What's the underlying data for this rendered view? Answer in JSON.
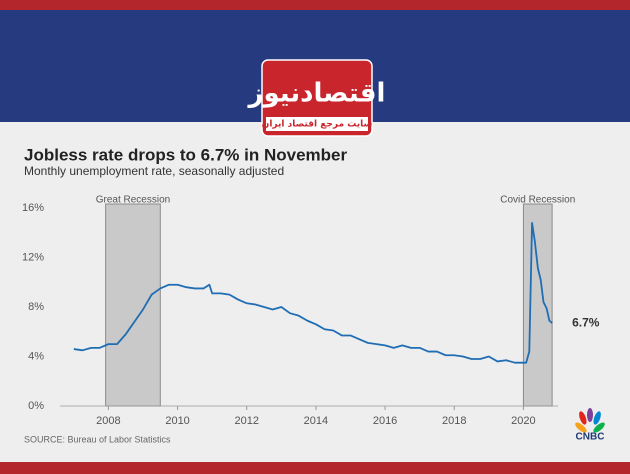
{
  "header": {
    "logo_title": "اقتصادنیوز",
    "logo_tagline": "سایت مرجع اقتصاد ایران"
  },
  "chart_data": {
    "type": "line",
    "title": "Jobless rate drops to 6.7% in November",
    "subtitle": "Monthly unemployment rate, seasonally adjusted",
    "source": "SOURCE: Bureau of Labor Statistics",
    "brand": "CNBC",
    "color": "#1f6db3",
    "grid": false,
    "xlim": [
      2006.6,
      2021
    ],
    "xticks": [
      2008,
      2010,
      2012,
      2014,
      2016,
      2018,
      2020
    ],
    "ylim": [
      0,
      16
    ],
    "yticks": [
      {
        "value": 0,
        "label": "0%"
      },
      {
        "value": 4,
        "label": "4%"
      },
      {
        "value": 8,
        "label": "8%"
      },
      {
        "value": 12,
        "label": "12%"
      },
      {
        "value": 16,
        "label": "16%"
      }
    ],
    "shaded": [
      {
        "label": "Great Recession",
        "start": 2007.92,
        "end": 2009.5
      },
      {
        "label": "Covid Recession",
        "start": 2020.0,
        "end": 2020.83
      }
    ],
    "x": [
      2007.0,
      2007.25,
      2007.5,
      2007.75,
      2008.0,
      2008.25,
      2008.5,
      2008.75,
      2009.0,
      2009.25,
      2009.5,
      2009.75,
      2010.0,
      2010.25,
      2010.5,
      2010.75,
      2010.92,
      2011.0,
      2011.25,
      2011.5,
      2011.75,
      2012.0,
      2012.25,
      2012.5,
      2012.75,
      2013.0,
      2013.25,
      2013.5,
      2013.75,
      2014.0,
      2014.25,
      2014.5,
      2014.75,
      2015.0,
      2015.25,
      2015.5,
      2015.75,
      2016.0,
      2016.25,
      2016.5,
      2016.75,
      2017.0,
      2017.25,
      2017.5,
      2017.75,
      2018.0,
      2018.25,
      2018.5,
      2018.75,
      2019.0,
      2019.25,
      2019.5,
      2019.75,
      2020.0,
      2020.08,
      2020.17,
      2020.25,
      2020.33,
      2020.42,
      2020.5,
      2020.58,
      2020.67,
      2020.75,
      2020.83
    ],
    "values": [
      4.6,
      4.5,
      4.7,
      4.7,
      5.0,
      5.0,
      5.8,
      6.8,
      7.8,
      9.0,
      9.5,
      9.8,
      9.8,
      9.6,
      9.5,
      9.5,
      9.8,
      9.1,
      9.1,
      9.0,
      8.6,
      8.3,
      8.2,
      8.0,
      7.8,
      8.0,
      7.5,
      7.3,
      6.9,
      6.6,
      6.2,
      6.1,
      5.7,
      5.7,
      5.4,
      5.1,
      5.0,
      4.9,
      4.7,
      4.9,
      4.7,
      4.7,
      4.4,
      4.4,
      4.1,
      4.1,
      4.0,
      3.8,
      3.8,
      4.0,
      3.6,
      3.7,
      3.5,
      3.5,
      3.5,
      4.4,
      14.8,
      13.3,
      11.1,
      10.2,
      8.4,
      7.9,
      6.9,
      6.7
    ],
    "value_labels": [
      null,
      null,
      null,
      null,
      null,
      null,
      null,
      null,
      null,
      null,
      null,
      null,
      null,
      null,
      null,
      null,
      null,
      null,
      null,
      null,
      null,
      null,
      null,
      null,
      null,
      null,
      null,
      null,
      null,
      null,
      null,
      null,
      null,
      null,
      null,
      null,
      null,
      null,
      null,
      null,
      null,
      null,
      null,
      null,
      null,
      null,
      null,
      null,
      null,
      null,
      null,
      null,
      null,
      null,
      null,
      null,
      null,
      null,
      null,
      null,
      null,
      null,
      null,
      "6.7%"
    ]
  }
}
